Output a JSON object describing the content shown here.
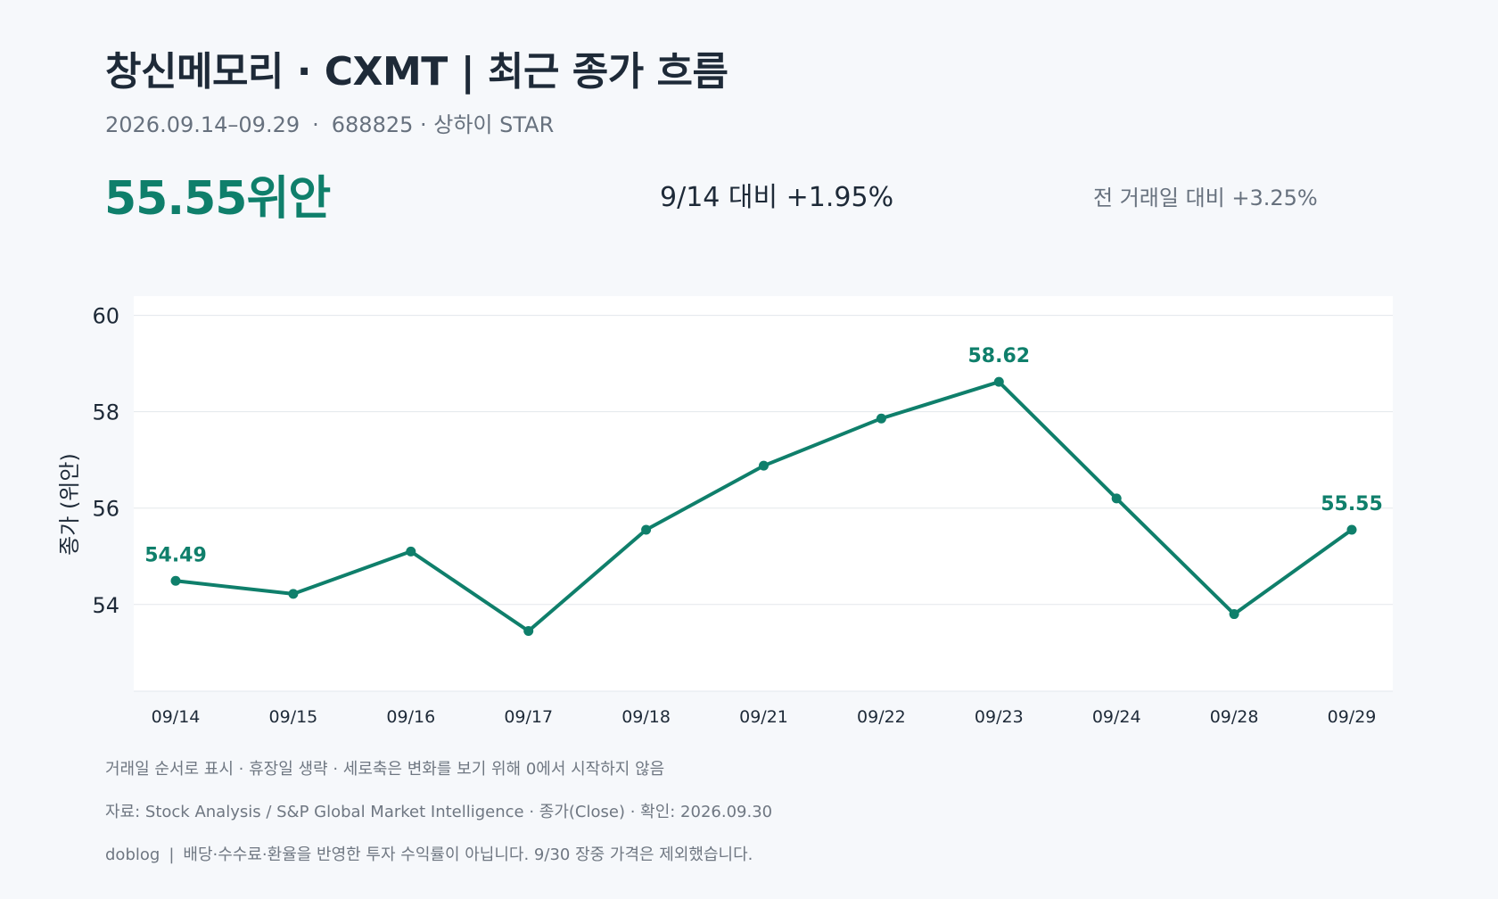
{
  "header": {
    "title": "창신메모리 · CXMT | 최근 종가 흐름",
    "date_range": "2026.09.14–09.29",
    "ticker_market": "688825 · 상하이 STAR",
    "separator": "·"
  },
  "summary": {
    "price": "55.55위안",
    "vs_start": "9/14 대비  +1.95%",
    "vs_prev": "전 거래일 대비 +3.25%"
  },
  "notes": {
    "line1": "거래일 순서로 표시 · 휴장일 생략 · 세로축은 변화를 보기 위해 0에서 시작하지 않음",
    "line2": "자료: Stock Analysis / S&P Global Market Intelligence · 종가(Close) · 확인: 2026.09.30",
    "line3_brand": "doblog",
    "line3_sep": "|",
    "line3_text": "배당·수수료·환율을 반영한 투자 수익률이 아닙니다. 9/30 장중 가격은 제외했습니다."
  },
  "colors": {
    "accent": "#0f7f6b",
    "text": "#1e2a38",
    "muted": "#67717e",
    "grid": "#e3e7ec",
    "plot_bg": "#ffffff"
  },
  "chart_data": {
    "type": "line",
    "title": "",
    "xlabel": "",
    "ylabel": "종가 (위안)",
    "categories": [
      "09/14",
      "09/15",
      "09/16",
      "09/17",
      "09/18",
      "09/21",
      "09/22",
      "09/23",
      "09/24",
      "09/28",
      "09/29"
    ],
    "series": [
      {
        "values": [
          54.49,
          54.22,
          55.1,
          53.45,
          55.55,
          56.88,
          57.86,
          58.62,
          56.2,
          53.8,
          55.55
        ]
      }
    ],
    "data_labels": [
      {
        "index": 0,
        "text": "54.49"
      },
      {
        "index": 7,
        "text": "58.62"
      },
      {
        "index": 10,
        "text": "55.55"
      }
    ],
    "ylim": [
      52.2,
      60.4
    ],
    "yticks": [
      54,
      56,
      58,
      60
    ],
    "grid": true,
    "legend": "none"
  }
}
